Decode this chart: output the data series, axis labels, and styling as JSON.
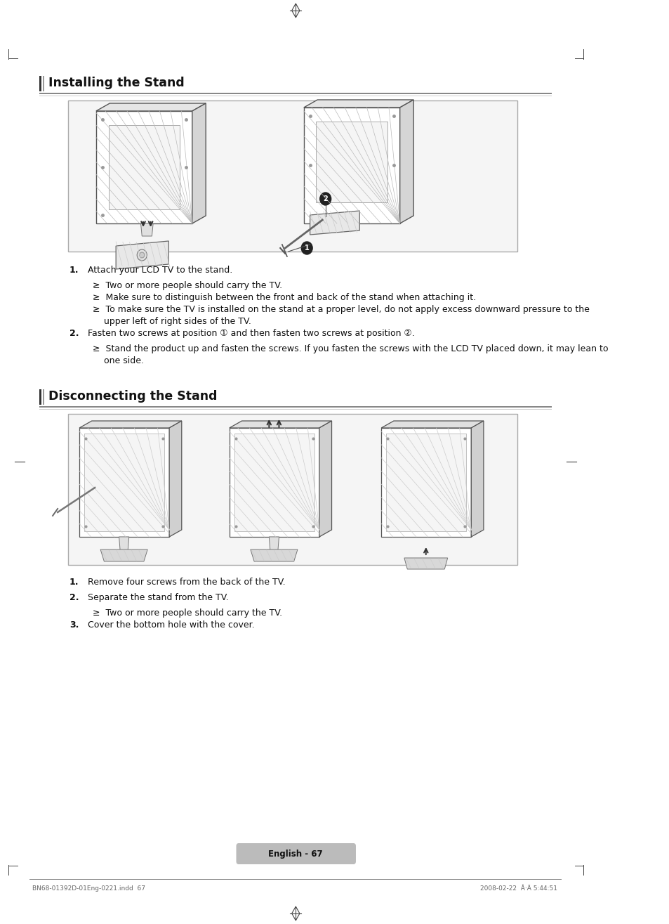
{
  "bg_color": "#ffffff",
  "title1": "Installing the Stand",
  "title2": "Disconnecting the Stand",
  "section1_items": [
    [
      "1.",
      "Attach your LCD TV to the stand.",
      false
    ],
    [
      "",
      "≥  Two or more people should carry the TV.",
      true
    ],
    [
      "",
      "≥  Make sure to distinguish between the front and back of the stand when attaching it.",
      true
    ],
    [
      "",
      "≥  To make sure the TV is installed on the stand at a proper level, do not apply excess downward pressure to the",
      true
    ],
    [
      "",
      "    upper left of right sides of the TV.",
      true
    ],
    [
      "2.",
      "Fasten two screws at position ① and then fasten two screws at position ②.",
      false
    ],
    [
      "",
      "≥  Stand the product up and fasten the screws. If you fasten the screws with the LCD TV placed down, it may lean to",
      true
    ],
    [
      "",
      "    one side.",
      true
    ]
  ],
  "section2_items": [
    [
      "1.",
      "Remove four screws from the back of the TV.",
      false
    ],
    [
      "2.",
      "Separate the stand from the TV.",
      false
    ],
    [
      "",
      "≥  Two or more people should carry the TV.",
      true
    ],
    [
      "3.",
      "Cover the bottom hole with the cover.",
      false
    ]
  ],
  "footer_text": "English - 67",
  "bottom_left": "BN68-01392D-01Eng-0221.indd  67",
  "bottom_right": "2008-02-22  Â·Ã 5:44:51",
  "title_color": "#111111",
  "rule_color1": "#888888",
  "rule_color2": "#bbbbbb",
  "bar_color1": "#444444",
  "bar_color2": "#888888",
  "box_edge": "#aaaaaa",
  "hatch_color": "#cccccc",
  "tv_edge": "#555555",
  "tv_face": "#f8f8f8",
  "stand_face": "#e0e0e0",
  "stand_edge": "#666666",
  "footer_bg": "#bbbbbb"
}
